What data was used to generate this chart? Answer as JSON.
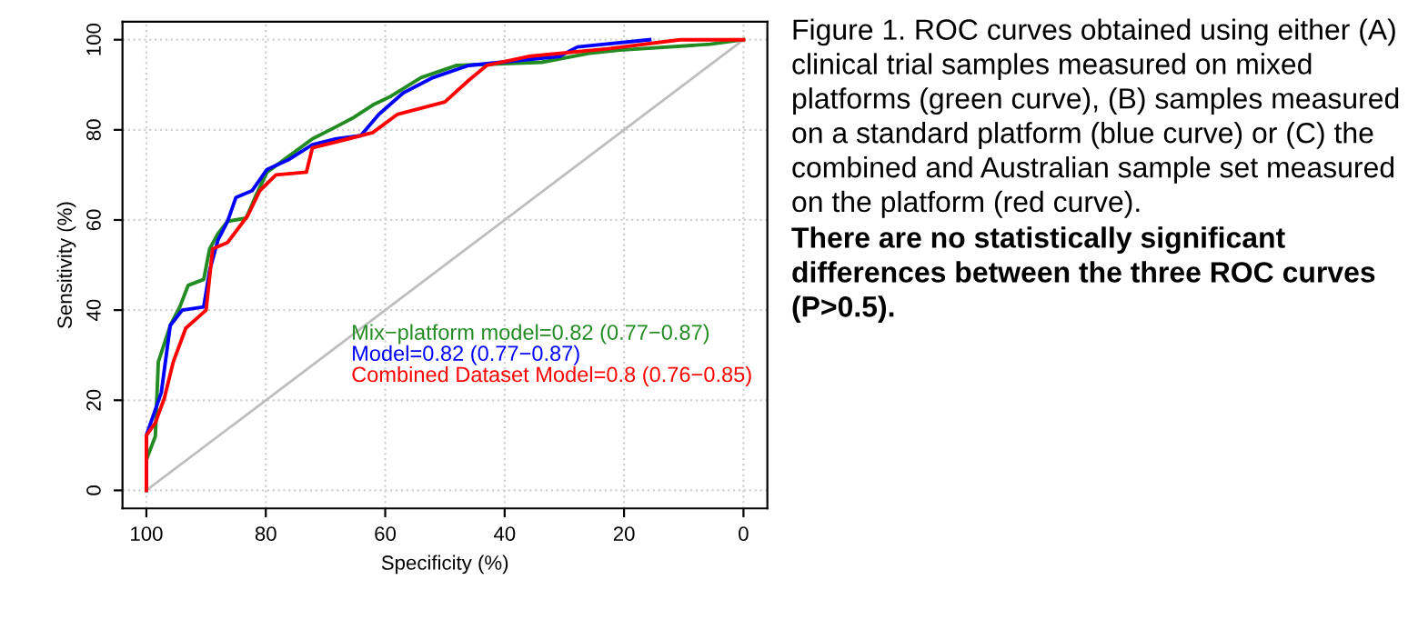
{
  "chart_data": {
    "type": "line",
    "xlabel": "Specificity (%)",
    "ylabel": "Sensitivity (%)",
    "xlim": [
      104,
      -4
    ],
    "ylim": [
      -4,
      104
    ],
    "xticks": [
      100,
      80,
      60,
      40,
      20,
      0
    ],
    "yticks": [
      0,
      20,
      40,
      60,
      80,
      100
    ],
    "grid": true,
    "legend": "bottom right",
    "marker": "none",
    "line_style": "solid",
    "series": [
      {
        "x": [
          100,
          0
        ],
        "values": [
          0,
          100
        ],
        "color": "#bebebe"
      },
      {
        "name": "Mix−platform model=0.82 (0.77−0.87)",
        "color": "#228b22",
        "x": [
          100,
          100,
          98.5,
          98,
          96,
          94.4,
          93,
          90.4,
          89.4,
          88,
          86.4,
          83.3,
          81.8,
          79.8,
          76.3,
          72.2,
          68.2,
          65.2,
          62.1,
          59,
          54,
          48,
          42,
          33.8,
          25.8,
          20.7,
          5.6,
          0
        ],
        "values": [
          0,
          6.8,
          12,
          28.5,
          36.6,
          40.7,
          45.5,
          46.8,
          53.6,
          57,
          59.7,
          60.4,
          65,
          70.6,
          74,
          78,
          80.7,
          82.8,
          85.5,
          87.5,
          91.6,
          94.3,
          94.6,
          95,
          97,
          97.7,
          99,
          100
        ]
      },
      {
        "name": "Model=0.82 (0.77−0.87)",
        "color": "#0000ff",
        "x": [
          100,
          100,
          97.5,
          96,
          94,
          90.4,
          89.4,
          88,
          86.4,
          85,
          82.3,
          79.8,
          76.3,
          72.2,
          68.2,
          64.1,
          61.1,
          57,
          52,
          46,
          30.8,
          27.8,
          15.7
        ],
        "values": [
          0,
          12.2,
          21.7,
          36.6,
          40,
          40.7,
          48.8,
          55.6,
          59.7,
          65,
          66.5,
          71.2,
          73.3,
          76.7,
          78,
          78.7,
          83.4,
          88.2,
          91.6,
          94.3,
          96.3,
          98.4,
          100
        ]
      },
      {
        "name": "Combined Dataset Model=0.8 (0.76−0.85)",
        "color": "#ff0000",
        "x": [
          100,
          100,
          98.5,
          97,
          95.5,
          93.4,
          90,
          88.9,
          86.4,
          83,
          81,
          78.3,
          73.2,
          72.2,
          66.2,
          62.1,
          58,
          50,
          46,
          43,
          36,
          22.7,
          10.6,
          0
        ],
        "values": [
          0,
          12.2,
          15,
          20.4,
          28.5,
          36,
          40,
          53.6,
          55,
          61,
          66.5,
          70,
          70.6,
          76,
          78,
          79.4,
          83.4,
          86.2,
          91,
          94.3,
          96.3,
          98,
          100,
          100
        ]
      }
    ],
    "annotations": [
      "Figure 1. ROC curves obtained using either (A) clinical trial samples measured on mixed platforms (green curve), (B) samples measured on a standard platform (blue curve) or (C) the combined and Australian sample set measured on the platform (red curve).",
      "There are no statistically significant differences between the three ROC curves (P>0.5)."
    ]
  }
}
